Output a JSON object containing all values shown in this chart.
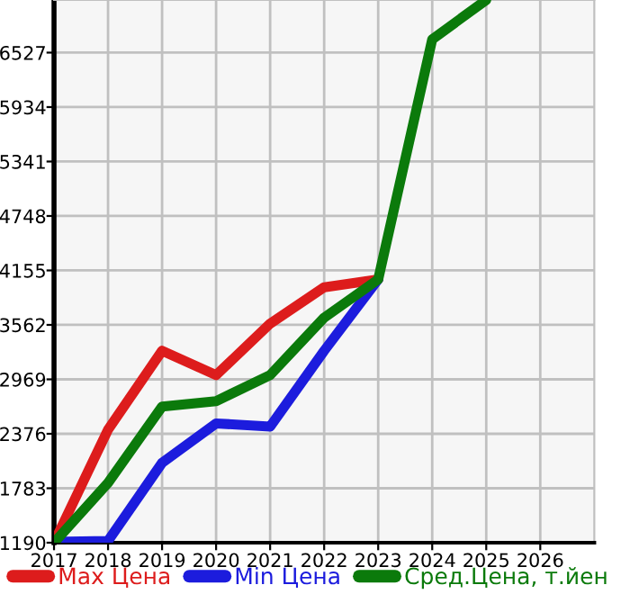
{
  "chart_data": {
    "type": "line",
    "x": [
      2017,
      2018,
      2019,
      2020,
      2021,
      2022,
      2023,
      2024,
      2025
    ],
    "series": [
      {
        "name": "Max Цена",
        "color": "#dd1c1c",
        "values": [
          1190,
          2422,
          3280,
          3015,
          3576,
          3972,
          4057,
          null,
          null
        ]
      },
      {
        "name": "Min Цена",
        "color": "#1c1cdd",
        "values": [
          1200,
          1210,
          2060,
          2489,
          2455,
          3280,
          4057,
          null,
          null
        ]
      },
      {
        "name": "Сред.Цена, т.йен",
        "color": "#0b7a0b",
        "values": [
          1190,
          1842,
          2673,
          2732,
          3015,
          3641,
          4057,
          6672,
          7100
        ]
      }
    ],
    "xlim": [
      2017,
      2027
    ],
    "xticks": [
      2017,
      2018,
      2019,
      2020,
      2021,
      2022,
      2023,
      2024,
      2025,
      2026
    ],
    "ylim": [
      1190,
      7100
    ],
    "yticks": [
      1190,
      1783,
      2376,
      2969,
      3562,
      4155,
      4748,
      5341,
      5934,
      6527
    ],
    "grid": true,
    "legend": "bottom",
    "marker": "none",
    "line_style": "solid"
  }
}
